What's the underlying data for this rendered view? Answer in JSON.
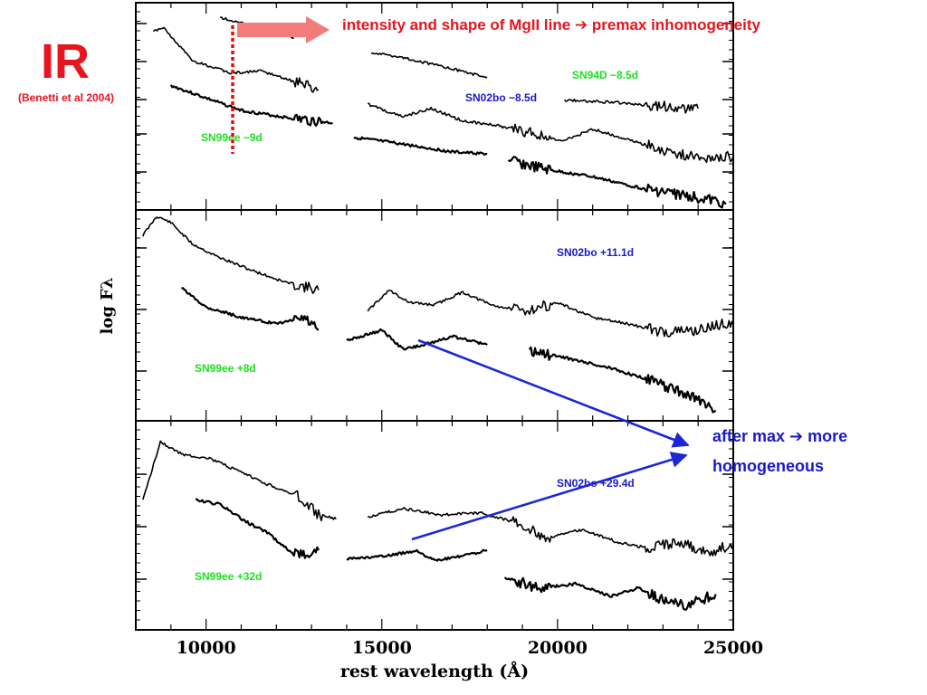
{
  "slide": {
    "heading": "IR",
    "citation": "(Benetti et al  2004)",
    "top_callout": "intensity and shape of MgII line ➔ premax inhomogeneity",
    "after_max_line1": "after max ➔ more",
    "after_max_line2": "homogeneous"
  },
  "colors": {
    "heading_red": "#e8141e",
    "green_label": "#22dd22",
    "blue_label": "#1a1acc",
    "arrow_pink": "#f27b7b",
    "arrow_blue": "#1c26d6",
    "marker_red": "#e01010",
    "trace": "#000000"
  },
  "chart_data": {
    "type": "line",
    "xlabel": "rest wavelength (Å)",
    "ylabel": "log Fλ",
    "xlim": [
      8000,
      25000
    ],
    "x_ticks": [
      10000,
      15000,
      20000,
      25000
    ],
    "y_scale": "log",
    "grid": false,
    "panels": [
      {
        "series": [
          {
            "name": "SN94D −8.5d",
            "label": "SN94D −8.5d",
            "segments": [
              [
                [
                  10400,
                  0.93
                ],
                [
                  11000,
                  0.9
                ],
                [
                  12000,
                  0.86
                ],
                [
                  12500,
                  0.83
                ]
              ],
              [
                [
                  14700,
                  0.76
                ],
                [
                  15500,
                  0.74
                ],
                [
                  17000,
                  0.68
                ],
                [
                  18000,
                  0.64
                ]
              ],
              [
                [
                  20200,
                  0.53
                ],
                [
                  21500,
                  0.52
                ],
                [
                  23000,
                  0.5
                ],
                [
                  24000,
                  0.49
                ]
              ]
            ]
          },
          {
            "name": "SN02bo −8.5d",
            "label": "SN02bo −8.5d",
            "segments": [
              [
                [
                  8500,
                  0.86
                ],
                [
                  8800,
                  0.88
                ],
                [
                  9600,
                  0.72
                ],
                [
                  10700,
                  0.66
                ],
                [
                  11600,
                  0.67
                ],
                [
                  12500,
                  0.62
                ],
                [
                  13200,
                  0.58
                ]
              ],
              [
                [
                  14600,
                  0.51
                ],
                [
                  15600,
                  0.45
                ],
                [
                  16400,
                  0.49
                ],
                [
                  17300,
                  0.43
                ],
                [
                  18200,
                  0.41
                ],
                [
                  19300,
                  0.37
                ],
                [
                  20100,
                  0.33
                ],
                [
                  21000,
                  0.39
                ],
                [
                  22000,
                  0.34
                ],
                [
                  23200,
                  0.28
                ],
                [
                  24000,
                  0.25
                ],
                [
                  25000,
                  0.26
                ]
              ]
            ]
          },
          {
            "name": "SN99ee −9d",
            "label": "SN99ee −9d",
            "segments": [
              [
                [
                  9000,
                  0.6
                ],
                [
                  10000,
                  0.54
                ],
                [
                  11000,
                  0.48
                ],
                [
                  12500,
                  0.44
                ],
                [
                  13600,
                  0.42
                ]
              ],
              [
                [
                  14200,
                  0.35
                ],
                [
                  15500,
                  0.32
                ],
                [
                  17000,
                  0.28
                ],
                [
                  18000,
                  0.27
                ]
              ],
              [
                [
                  18600,
                  0.24
                ],
                [
                  19500,
                  0.2
                ],
                [
                  21000,
                  0.16
                ],
                [
                  22500,
                  0.1
                ],
                [
                  24000,
                  0.06
                ],
                [
                  24800,
                  0.03
                ]
              ]
            ]
          }
        ]
      },
      {
        "series": [
          {
            "name": "SN02bo +11.1d",
            "label": "SN02bo +11.1d",
            "segments": [
              [
                [
                  8200,
                  0.88
                ],
                [
                  8600,
                  0.97
                ],
                [
                  9000,
                  0.94
                ],
                [
                  9600,
                  0.84
                ],
                [
                  10300,
                  0.78
                ],
                [
                  11200,
                  0.72
                ],
                [
                  12200,
                  0.66
                ],
                [
                  13200,
                  0.62
                ]
              ],
              [
                [
                  14600,
                  0.52
                ],
                [
                  15200,
                  0.62
                ],
                [
                  15800,
                  0.56
                ],
                [
                  16500,
                  0.55
                ],
                [
                  17300,
                  0.61
                ],
                [
                  18100,
                  0.55
                ],
                [
                  19000,
                  0.52
                ],
                [
                  20000,
                  0.56
                ],
                [
                  21000,
                  0.49
                ],
                [
                  22000,
                  0.46
                ],
                [
                  23000,
                  0.42
                ],
                [
                  24000,
                  0.43
                ],
                [
                  25000,
                  0.47
                ]
              ]
            ]
          },
          {
            "name": "SN99ee +8d",
            "label": "SN99ee +8d",
            "segments": [
              [
                [
                  9300,
                  0.63
                ],
                [
                  10000,
                  0.54
                ],
                [
                  11000,
                  0.49
                ],
                [
                  12000,
                  0.46
                ],
                [
                  12800,
                  0.49
                ],
                [
                  13200,
                  0.43
                ]
              ],
              [
                [
                  14000,
                  0.38
                ],
                [
                  15000,
                  0.43
                ],
                [
                  15600,
                  0.34
                ],
                [
                  16200,
                  0.36
                ],
                [
                  17000,
                  0.4
                ],
                [
                  18000,
                  0.36
                ]
              ],
              [
                [
                  19200,
                  0.33
                ],
                [
                  20200,
                  0.3
                ],
                [
                  21500,
                  0.25
                ],
                [
                  22500,
                  0.2
                ],
                [
                  23500,
                  0.14
                ],
                [
                  24500,
                  0.05
                ]
              ]
            ]
          }
        ]
      },
      {
        "series": [
          {
            "name": "SN02bo +29.4d",
            "label": "SN02bo +29.4d",
            "segments": [
              [
                [
                  8200,
                  0.62
                ],
                [
                  8700,
                  0.9
                ],
                [
                  9300,
                  0.84
                ],
                [
                  10100,
                  0.82
                ],
                [
                  10900,
                  0.76
                ],
                [
                  11700,
                  0.7
                ],
                [
                  12600,
                  0.64
                ],
                [
                  13200,
                  0.55
                ],
                [
                  13700,
                  0.53
                ]
              ],
              [
                [
                  14600,
                  0.54
                ],
                [
                  15600,
                  0.58
                ],
                [
                  16700,
                  0.55
                ],
                [
                  17800,
                  0.56
                ],
                [
                  18700,
                  0.52
                ],
                [
                  19700,
                  0.44
                ],
                [
                  20700,
                  0.48
                ],
                [
                  21700,
                  0.42
                ],
                [
                  22600,
                  0.39
                ],
                [
                  23400,
                  0.42
                ],
                [
                  24300,
                  0.37
                ],
                [
                  25000,
                  0.41
                ]
              ]
            ]
          },
          {
            "name": "SN99ee +32d",
            "label": "SN99ee +32d",
            "segments": [
              [
                [
                  9700,
                  0.62
                ],
                [
                  10400,
                  0.6
                ],
                [
                  11100,
                  0.52
                ],
                [
                  11700,
                  0.47
                ],
                [
                  12500,
                  0.36
                ],
                [
                  13200,
                  0.38
                ]
              ],
              [
                [
                  14000,
                  0.34
                ],
                [
                  15000,
                  0.35
                ],
                [
                  16000,
                  0.38
                ],
                [
                  16500,
                  0.33
                ],
                [
                  17200,
                  0.35
                ],
                [
                  18000,
                  0.38
                ]
              ],
              [
                [
                  18500,
                  0.25
                ],
                [
                  19500,
                  0.2
                ],
                [
                  20500,
                  0.22
                ],
                [
                  21500,
                  0.16
                ],
                [
                  22300,
                  0.2
                ],
                [
                  23000,
                  0.14
                ],
                [
                  23700,
                  0.12
                ],
                [
                  24500,
                  0.17
                ]
              ]
            ]
          }
        ]
      }
    ]
  }
}
